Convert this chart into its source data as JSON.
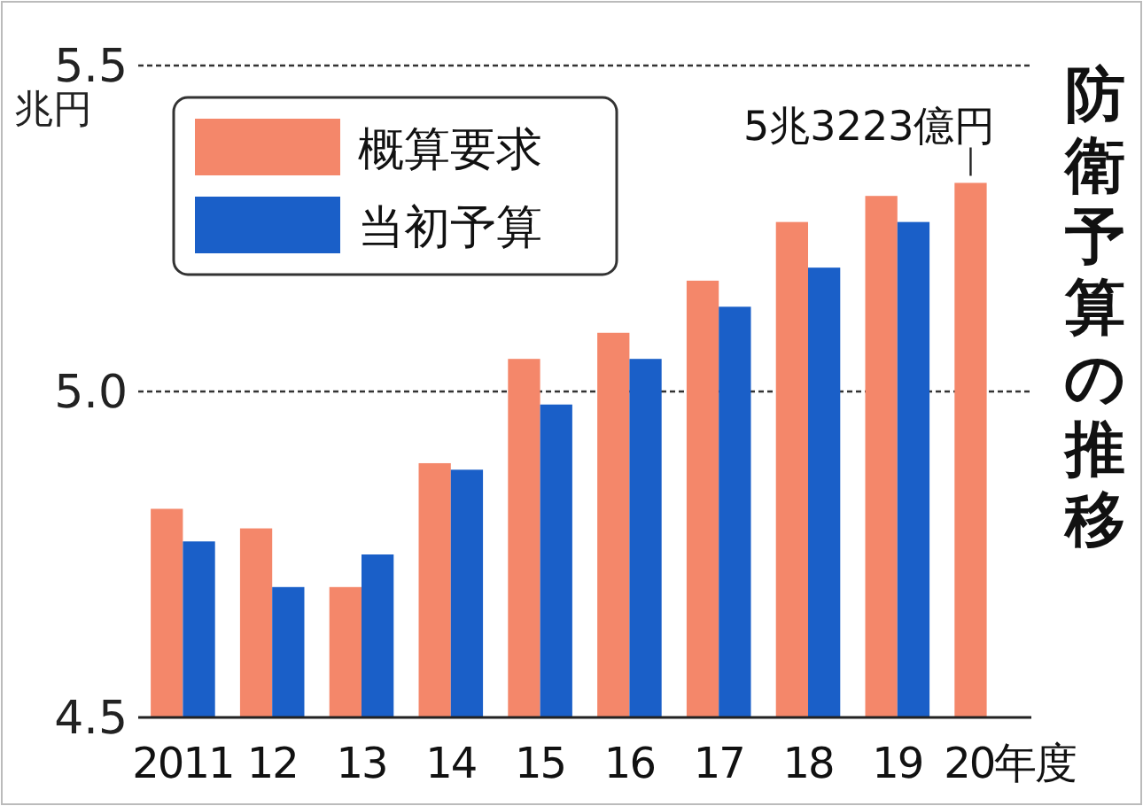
{
  "chart_data": {
    "type": "bar",
    "title": "防衛予算の推移",
    "ylabel": "兆円",
    "categories": [
      "2011",
      "12",
      "13",
      "14",
      "15",
      "16",
      "17",
      "18",
      "19",
      "20年度"
    ],
    "series": [
      {
        "name": "概算要求",
        "color": "#f4876a",
        "values": [
          4.82,
          4.79,
          4.7,
          4.89,
          5.05,
          5.09,
          5.17,
          5.26,
          5.3,
          5.32
        ]
      },
      {
        "name": "当初予算",
        "color": "#1a5fc8",
        "values": [
          4.77,
          4.7,
          4.75,
          4.88,
          4.98,
          5.05,
          5.13,
          5.19,
          5.26,
          null
        ]
      }
    ],
    "ylim": [
      4.5,
      5.5
    ],
    "yticks": [
      4.5,
      {
        "value": 5,
        "label": "5.0"
      },
      5.5
    ],
    "grid": "y",
    "legend": "top left",
    "annotations": [
      {
        "text": "5兆3223億円",
        "x": "20年度",
        "y": 5.32
      }
    ]
  }
}
